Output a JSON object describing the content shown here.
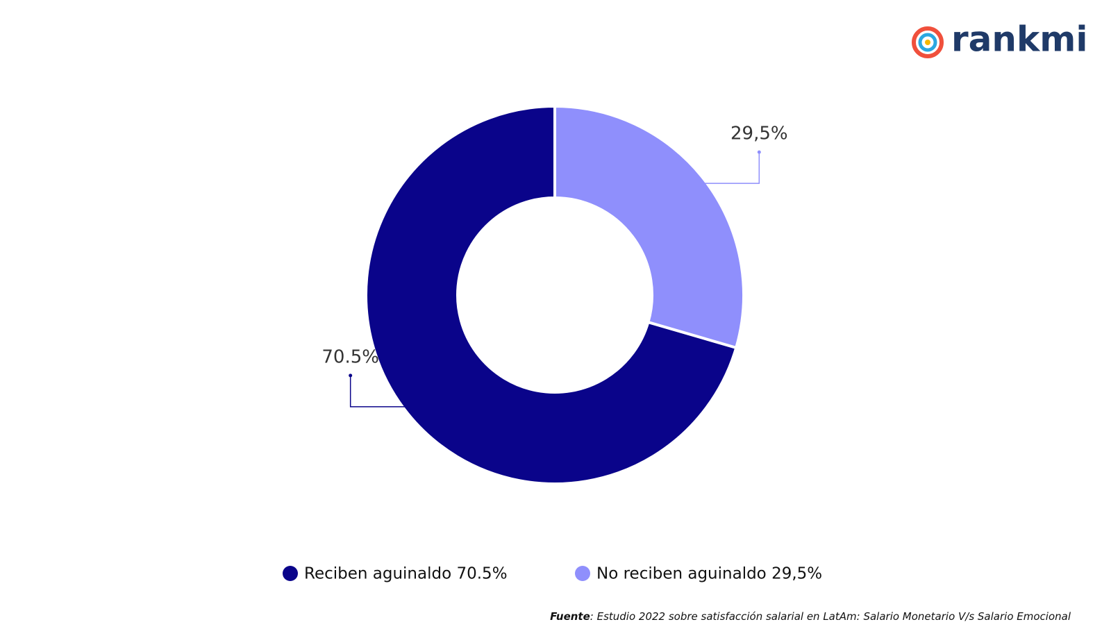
{
  "logo": "rankmi",
  "chart_data": {
    "type": "donut",
    "categories": [
      "Reciben aguinaldo 70.5%",
      "No reciben aguinaldo 29,5%"
    ],
    "values": [
      70.5,
      29.5
    ],
    "value_labels": [
      "70.5%",
      "29,5%"
    ],
    "colors": [
      "#0a048a",
      "#8f8ffc"
    ],
    "source": {
      "label": "Fuente",
      "text": ": Estudio 2022 sobre satisfacción salarial en LatAm: Salario Monetario V/s Salario Emocional"
    }
  }
}
